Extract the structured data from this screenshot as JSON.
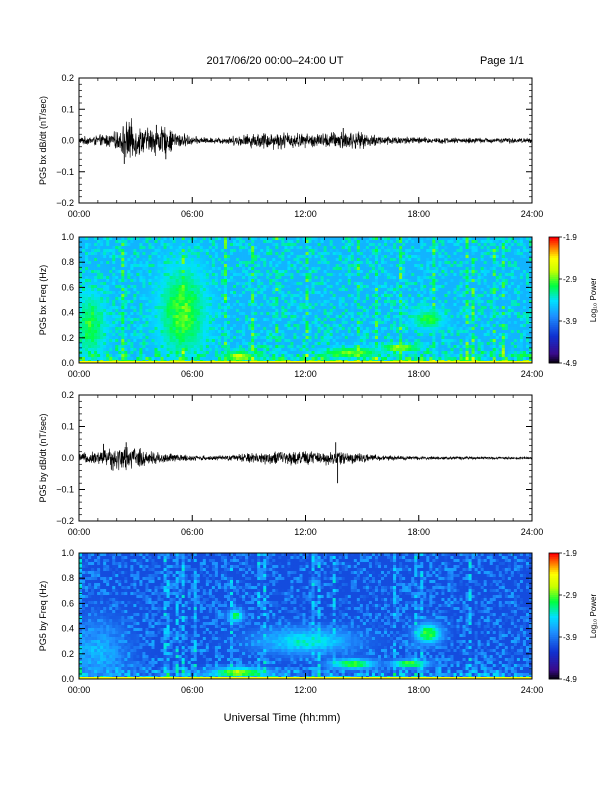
{
  "header": {
    "title": "2017/06/20  00:00–24:00 UT",
    "page": "Page 1/1"
  },
  "footer": {
    "xlabel": "Universal Time (hh:mm)"
  },
  "colors": {
    "trace": "#000000",
    "background": "#ffffff",
    "colormap": [
      "#000000",
      "#3a0a8a",
      "#1030d0",
      "#1e90ff",
      "#00e0ff",
      "#00ff40",
      "#c8ff00",
      "#ffff00",
      "#ff8000",
      "#ff0000"
    ]
  },
  "chart_data": [
    {
      "type": "line",
      "ylabel": "PG5 bx dB/dt (nT/sec)",
      "xlim": [
        0,
        24
      ],
      "ylim": [
        -0.2,
        0.2
      ],
      "x_ticks": [
        "00:00",
        "06:00",
        "12:00",
        "18:00",
        "24:00"
      ],
      "y_ticks": [
        "0.2",
        "0.1",
        "0.0",
        "−0.1",
        "−0.2"
      ],
      "envelope": [
        {
          "x": 0.0,
          "amp": 0.01
        },
        {
          "x": 1.0,
          "amp": 0.015
        },
        {
          "x": 2.0,
          "amp": 0.025
        },
        {
          "x": 2.6,
          "amp": 0.06
        },
        {
          "x": 3.5,
          "amp": 0.035
        },
        {
          "x": 4.2,
          "amp": 0.045
        },
        {
          "x": 5.0,
          "amp": 0.03
        },
        {
          "x": 6.0,
          "amp": 0.012
        },
        {
          "x": 7.0,
          "amp": 0.008
        },
        {
          "x": 8.0,
          "amp": 0.012
        },
        {
          "x": 9.0,
          "amp": 0.02
        },
        {
          "x": 10.0,
          "amp": 0.025
        },
        {
          "x": 11.0,
          "amp": 0.025
        },
        {
          "x": 12.0,
          "amp": 0.02
        },
        {
          "x": 13.0,
          "amp": 0.022
        },
        {
          "x": 14.0,
          "amp": 0.03
        },
        {
          "x": 15.0,
          "amp": 0.022
        },
        {
          "x": 16.0,
          "amp": 0.015
        },
        {
          "x": 17.0,
          "amp": 0.012
        },
        {
          "x": 18.0,
          "amp": 0.01
        },
        {
          "x": 20.0,
          "amp": 0.008
        },
        {
          "x": 24.0,
          "amp": 0.007
        }
      ],
      "spikes": [
        {
          "x": 2.4,
          "y": -0.075
        },
        {
          "x": 2.7,
          "y": 0.045
        },
        {
          "x": 4.1,
          "y": 0.05
        },
        {
          "x": 4.6,
          "y": -0.06
        },
        {
          "x": 14.0,
          "y": 0.04
        }
      ]
    },
    {
      "type": "heatmap",
      "ylabel": "PG5 bx Freq (Hz)",
      "xlim": [
        0,
        24
      ],
      "ylim": [
        0,
        1.0
      ],
      "x_ticks": [
        "00:00",
        "06:00",
        "12:00",
        "18:00",
        "24:00"
      ],
      "y_ticks": [
        "1.0",
        "0.8",
        "0.6",
        "0.4",
        "0.2",
        "0.0"
      ],
      "colorbar": {
        "label": "Log₁₀ Power",
        "min": -4.9,
        "max": -1.9,
        "ticks": [
          "-1.9",
          "-2.9",
          "-3.9",
          "-4.9"
        ]
      },
      "background_level": -3.6,
      "features": [
        {
          "t": 0.6,
          "f": 0.3,
          "dt": 0.8,
          "df": 0.25,
          "level": -3.0
        },
        {
          "t": 5.5,
          "f": 0.4,
          "dt": 1.2,
          "df": 0.35,
          "level": -2.9
        },
        {
          "t": 8.5,
          "f": 0.05,
          "dt": 0.8,
          "df": 0.04,
          "level": -2.6
        },
        {
          "t": 14.5,
          "f": 0.08,
          "dt": 1.5,
          "df": 0.04,
          "level": -2.8
        },
        {
          "t": 17.0,
          "f": 0.12,
          "dt": 1.0,
          "df": 0.03,
          "level": -2.7
        },
        {
          "t": 18.5,
          "f": 0.35,
          "dt": 0.8,
          "df": 0.08,
          "level": -3.0
        }
      ]
    },
    {
      "type": "line",
      "ylabel": "PG5 by dB/dt (nT/sec)",
      "xlim": [
        0,
        24
      ],
      "ylim": [
        -0.2,
        0.2
      ],
      "x_ticks": [
        "00:00",
        "06:00",
        "12:00",
        "18:00",
        "24:00"
      ],
      "y_ticks": [
        "0.2",
        "0.1",
        "0.0",
        "−0.1",
        "−0.2"
      ],
      "envelope": [
        {
          "x": 0.0,
          "amp": 0.012
        },
        {
          "x": 1.0,
          "amp": 0.02
        },
        {
          "x": 1.5,
          "amp": 0.03
        },
        {
          "x": 2.5,
          "amp": 0.035
        },
        {
          "x": 3.5,
          "amp": 0.025
        },
        {
          "x": 4.5,
          "amp": 0.015
        },
        {
          "x": 5.5,
          "amp": 0.01
        },
        {
          "x": 7.0,
          "amp": 0.006
        },
        {
          "x": 8.0,
          "amp": 0.008
        },
        {
          "x": 9.0,
          "amp": 0.015
        },
        {
          "x": 10.0,
          "amp": 0.018
        },
        {
          "x": 11.0,
          "amp": 0.02
        },
        {
          "x": 12.0,
          "amp": 0.02
        },
        {
          "x": 13.0,
          "amp": 0.018
        },
        {
          "x": 14.0,
          "amp": 0.022
        },
        {
          "x": 15.0,
          "amp": 0.012
        },
        {
          "x": 16.0,
          "amp": 0.008
        },
        {
          "x": 18.0,
          "amp": 0.005
        },
        {
          "x": 20.0,
          "amp": 0.004
        },
        {
          "x": 24.0,
          "amp": 0.003
        }
      ],
      "spikes": [
        {
          "x": 1.3,
          "y": 0.045
        },
        {
          "x": 2.5,
          "y": 0.05
        },
        {
          "x": 1.8,
          "y": -0.04
        },
        {
          "x": 13.6,
          "y": 0.05
        },
        {
          "x": 13.7,
          "y": -0.08
        }
      ]
    },
    {
      "type": "heatmap",
      "ylabel": "PG5 by Freq (Hz)",
      "xlim": [
        0,
        24
      ],
      "ylim": [
        0,
        1.0
      ],
      "x_ticks": [
        "00:00",
        "06:00",
        "12:00",
        "18:00",
        "24:00"
      ],
      "y_ticks": [
        "1.0",
        "0.8",
        "0.6",
        "0.4",
        "0.2",
        "0.0"
      ],
      "colorbar": {
        "label": "Log₁₀ Power",
        "min": -4.9,
        "max": -1.9,
        "ticks": [
          "-1.9",
          "-2.9",
          "-3.9",
          "-4.9"
        ]
      },
      "background_level": -4.1,
      "features": [
        {
          "t": 1.0,
          "f": 0.2,
          "dt": 1.5,
          "df": 0.25,
          "level": -3.6
        },
        {
          "t": 8.3,
          "f": 0.5,
          "dt": 0.4,
          "df": 0.05,
          "level": -3.0
        },
        {
          "t": 8.5,
          "f": 0.05,
          "dt": 1.5,
          "df": 0.04,
          "level": -2.7
        },
        {
          "t": 12.0,
          "f": 0.3,
          "dt": 2.5,
          "df": 0.1,
          "level": -3.3
        },
        {
          "t": 14.5,
          "f": 0.12,
          "dt": 1.2,
          "df": 0.04,
          "level": -2.9
        },
        {
          "t": 17.5,
          "f": 0.12,
          "dt": 1.0,
          "df": 0.03,
          "level": -2.8
        },
        {
          "t": 18.5,
          "f": 0.36,
          "dt": 0.7,
          "df": 0.08,
          "level": -2.9
        }
      ]
    }
  ]
}
